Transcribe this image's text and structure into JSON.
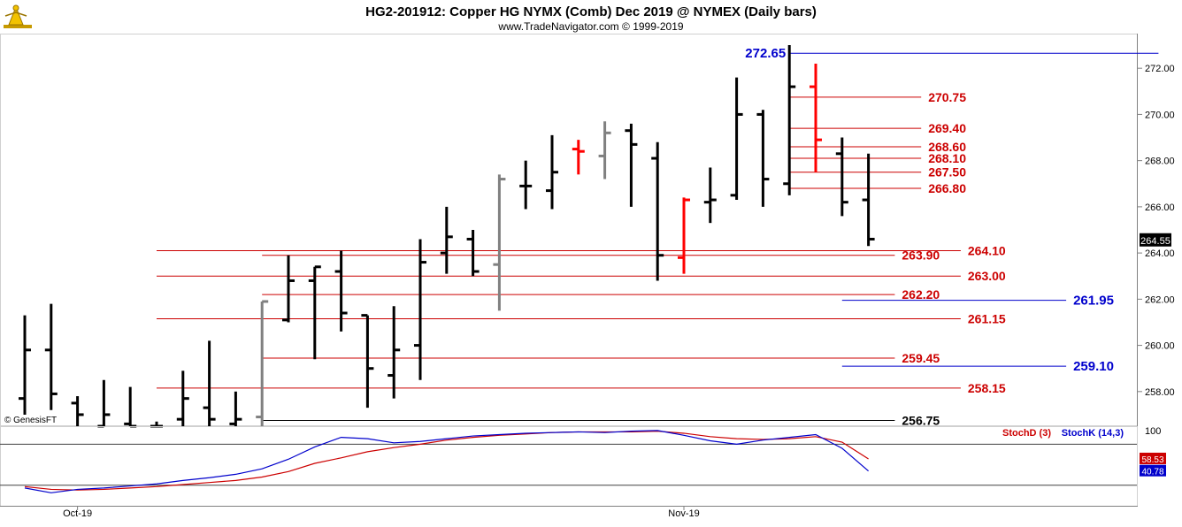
{
  "header": {
    "title": "HG2-201912:  Copper HG NYMX (Comb) Dec 2019 @ NYMEX  (Daily bars)",
    "subtitle": "www.TradeNavigator.com © 1999-2019",
    "logo_icon": "trading-navigator-logo-icon"
  },
  "watermark": "© GenesisFT",
  "colors": {
    "up_bar": "#000000",
    "neutral_bar": "#808080",
    "alert_bar": "#ff0000",
    "red_level": "#cc0000",
    "blue_level": "#0000cc",
    "stoch_d": "#cc0000",
    "stoch_k": "#0000cc",
    "last_price_bg": "#000000"
  },
  "chart_data": [
    {
      "type": "ohlc",
      "name": "price-panel",
      "ylim": [
        256.5,
        273.5
      ],
      "yticks": [
        258,
        260,
        262,
        264,
        266,
        268,
        270,
        272
      ],
      "ytick_labels": [
        "258.00",
        "260.00",
        "262.00",
        "264.00",
        "266.00",
        "268.00",
        "270.00",
        "272.00"
      ],
      "x_labels": [
        {
          "index": 2,
          "label": "Oct-19"
        },
        {
          "index": 25,
          "label": "Nov-19"
        }
      ],
      "last_price": {
        "label": "264.55",
        "value": 264.55
      },
      "bars": [
        {
          "o": 257.7,
          "h": 261.3,
          "l": 257.0,
          "c": 259.8,
          "color": "black"
        },
        {
          "o": 259.8,
          "h": 261.8,
          "l": 257.2,
          "c": 257.9,
          "color": "black"
        },
        {
          "o": 257.5,
          "h": 257.8,
          "l": 256.5,
          "c": 257.0,
          "color": "black"
        },
        {
          "o": 256.5,
          "h": 258.5,
          "l": 256.5,
          "c": 257.0,
          "color": "black"
        },
        {
          "o": 256.6,
          "h": 258.2,
          "l": 256.5,
          "c": 256.5,
          "color": "black"
        },
        {
          "o": 256.5,
          "h": 256.7,
          "l": 256.5,
          "c": 256.5,
          "color": "black"
        },
        {
          "o": 256.8,
          "h": 258.9,
          "l": 256.5,
          "c": 257.7,
          "color": "black"
        },
        {
          "o": 257.3,
          "h": 260.2,
          "l": 256.5,
          "c": 256.8,
          "color": "black"
        },
        {
          "o": 256.6,
          "h": 258.0,
          "l": 256.5,
          "c": 256.8,
          "color": "black"
        },
        {
          "o": 256.9,
          "h": 261.9,
          "l": 256.5,
          "c": 261.9,
          "color": "gray"
        },
        {
          "o": 261.1,
          "h": 263.9,
          "l": 261.0,
          "c": 262.8,
          "color": "black"
        },
        {
          "o": 262.8,
          "h": 263.4,
          "l": 259.4,
          "c": 263.4,
          "color": "black"
        },
        {
          "o": 263.2,
          "h": 264.1,
          "l": 260.6,
          "c": 261.4,
          "color": "black"
        },
        {
          "o": 261.3,
          "h": 261.3,
          "l": 257.3,
          "c": 259.0,
          "color": "black"
        },
        {
          "o": 258.7,
          "h": 261.7,
          "l": 257.7,
          "c": 259.8,
          "color": "black"
        },
        {
          "o": 260.0,
          "h": 264.6,
          "l": 258.5,
          "c": 263.6,
          "color": "black"
        },
        {
          "o": 264.0,
          "h": 266.0,
          "l": 263.1,
          "c": 264.7,
          "color": "black"
        },
        {
          "o": 264.6,
          "h": 265.0,
          "l": 263.0,
          "c": 263.2,
          "color": "black"
        },
        {
          "o": 263.5,
          "h": 267.4,
          "l": 261.5,
          "c": 267.2,
          "color": "gray"
        },
        {
          "o": 266.9,
          "h": 268.0,
          "l": 265.9,
          "c": 266.9,
          "color": "black"
        },
        {
          "o": 266.7,
          "h": 269.1,
          "l": 265.9,
          "c": 267.5,
          "color": "black"
        },
        {
          "o": 268.5,
          "h": 268.9,
          "l": 267.4,
          "c": 268.4,
          "color": "red"
        },
        {
          "o": 268.2,
          "h": 269.7,
          "l": 267.2,
          "c": 269.2,
          "color": "gray"
        },
        {
          "o": 269.3,
          "h": 269.6,
          "l": 266.0,
          "c": 268.7,
          "color": "black"
        },
        {
          "o": 268.1,
          "h": 268.8,
          "l": 262.8,
          "c": 263.9,
          "color": "black"
        },
        {
          "o": 263.8,
          "h": 266.4,
          "l": 263.1,
          "c": 266.3,
          "color": "red"
        },
        {
          "o": 266.2,
          "h": 267.7,
          "l": 265.3,
          "c": 266.3,
          "color": "black"
        },
        {
          "o": 266.5,
          "h": 271.6,
          "l": 266.3,
          "c": 270.0,
          "color": "black"
        },
        {
          "o": 270.0,
          "h": 270.2,
          "l": 266.0,
          "c": 267.2,
          "color": "black"
        },
        {
          "o": 267.0,
          "h": 273.0,
          "l": 266.5,
          "c": 271.2,
          "color": "black"
        },
        {
          "o": 271.2,
          "h": 272.2,
          "l": 267.5,
          "c": 268.9,
          "color": "red"
        },
        {
          "o": 268.3,
          "h": 269.0,
          "l": 265.6,
          "c": 266.2,
          "color": "black"
        },
        {
          "o": 266.3,
          "h": 268.3,
          "l": 264.3,
          "c": 264.6,
          "color": "black"
        }
      ],
      "levels": [
        {
          "label": "272.65",
          "value": 272.65,
          "color": "blue",
          "x0": 29,
          "x1": 43,
          "label_side": "left"
        },
        {
          "label": "270.75",
          "value": 270.75,
          "color": "red",
          "x0": 29,
          "x1": 34,
          "label_side": "right"
        },
        {
          "label": "269.40",
          "value": 269.4,
          "color": "red",
          "x0": 29,
          "x1": 34,
          "label_side": "right"
        },
        {
          "label": "268.60",
          "value": 268.6,
          "color": "red",
          "x0": 29,
          "x1": 34,
          "label_side": "right"
        },
        {
          "label": "268.10",
          "value": 268.1,
          "color": "red",
          "x0": 29,
          "x1": 34,
          "label_side": "right"
        },
        {
          "label": "267.50",
          "value": 267.5,
          "color": "red",
          "x0": 29,
          "x1": 34,
          "label_side": "right"
        },
        {
          "label": "266.80",
          "value": 266.8,
          "color": "red",
          "x0": 29,
          "x1": 34,
          "label_side": "right"
        },
        {
          "label": "264.10",
          "value": 264.1,
          "color": "red",
          "x0": 5,
          "x1": 35.5,
          "label_side": "right"
        },
        {
          "label": "263.90",
          "value": 263.9,
          "color": "red",
          "x0": 9,
          "x1": 33,
          "label_side": "right"
        },
        {
          "label": "263.00",
          "value": 263.0,
          "color": "red",
          "x0": 5,
          "x1": 35.5,
          "label_side": "right"
        },
        {
          "label": "262.20",
          "value": 262.2,
          "color": "red",
          "x0": 9,
          "x1": 33,
          "label_side": "right"
        },
        {
          "label": "261.95",
          "value": 261.95,
          "color": "blue",
          "x0": 31,
          "x1": 39.5,
          "label_side": "right"
        },
        {
          "label": "261.15",
          "value": 261.15,
          "color": "red",
          "x0": 5,
          "x1": 35.5,
          "label_side": "right"
        },
        {
          "label": "259.45",
          "value": 259.45,
          "color": "red",
          "x0": 9,
          "x1": 33,
          "label_side": "right"
        },
        {
          "label": "259.10",
          "value": 259.1,
          "color": "blue",
          "x0": 31,
          "x1": 39.5,
          "label_side": "right"
        },
        {
          "label": "258.15",
          "value": 258.15,
          "color": "red",
          "x0": 5,
          "x1": 35.5,
          "label_side": "right"
        },
        {
          "label": "256.75",
          "value": 256.75,
          "color": "black",
          "x0": 9,
          "x1": 33,
          "label_side": "right"
        }
      ]
    },
    {
      "type": "line",
      "name": "stochastic-panel",
      "ylim": [
        -10,
        105
      ],
      "ytick_labels": [
        "100"
      ],
      "yticks": [
        100
      ],
      "guides": [
        80,
        20
      ],
      "series": [
        {
          "name": "StochD (3)",
          "color": "red",
          "values": [
            18,
            14,
            13,
            14,
            16,
            18,
            21,
            24,
            27,
            32,
            40,
            52,
            60,
            69,
            75,
            80,
            86,
            90,
            93,
            95,
            97,
            98,
            98,
            98,
            99,
            96,
            91,
            88,
            87,
            88,
            91,
            83,
            58.53
          ],
          "last_label": "58.53"
        },
        {
          "name": "StochK (14,3)",
          "color": "blue",
          "values": [
            16,
            9,
            14,
            16,
            19,
            22,
            27,
            31,
            36,
            44,
            58,
            76,
            90,
            88,
            82,
            84,
            88,
            92,
            94,
            96,
            97,
            98,
            97,
            99,
            100,
            93,
            85,
            80,
            86,
            90,
            94,
            74,
            40.78
          ],
          "last_label": "40.78"
        }
      ]
    }
  ]
}
